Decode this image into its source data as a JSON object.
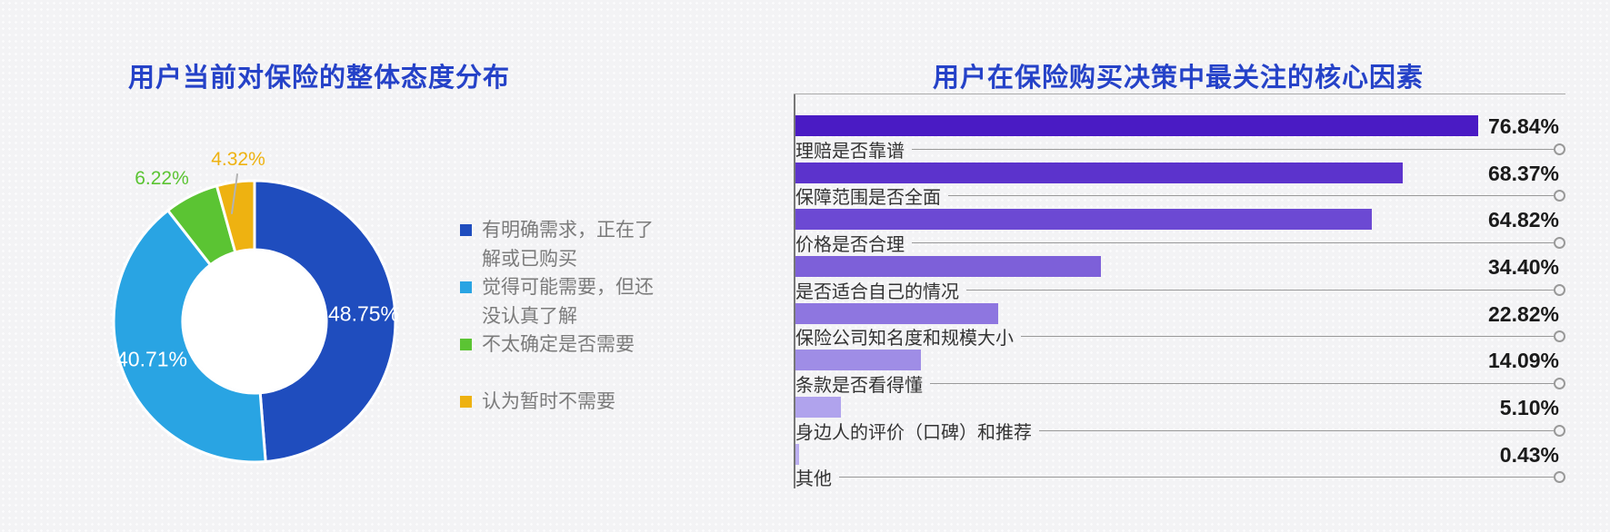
{
  "theme": {
    "title_color": "#2542c8",
    "background": "#f3f3f5",
    "value_label_color": "#1a1a1a",
    "category_label_color": "#333333"
  },
  "chart_data": [
    {
      "type": "pie",
      "variant": "donut",
      "title": "用户当前对保险的整体态度分布",
      "labels": [
        "有明确需求，正在了解或已购买",
        "觉得可能需要，但还没认真了解",
        "不太确定是否需要",
        "认为暂时不需要"
      ],
      "values": [
        48.75,
        40.71,
        6.22,
        4.32
      ],
      "value_labels": [
        "48.75%",
        "40.71%",
        "6.22%",
        "4.32%"
      ],
      "unit": "%",
      "colors": [
        "#1f4dbe",
        "#29a4e3",
        "#5bc433",
        "#eeb211"
      ],
      "legend_position": "right",
      "start_angle": "top",
      "direction": "clockwise"
    },
    {
      "type": "bar",
      "orientation": "horizontal",
      "title": "用户在保险购买决策中最关注的核心因素",
      "categories": [
        "理赔是否靠谱",
        "保障范围是否全面",
        "价格是否合理",
        "是否适合自己的情况",
        "保险公司知名度和规模大小",
        "条款是否看得懂",
        "身边人的评价（口碑）和推荐",
        "其他"
      ],
      "values": [
        76.84,
        68.37,
        64.82,
        34.4,
        22.82,
        14.09,
        5.1,
        0.43
      ],
      "value_labels": [
        "76.84%",
        "68.37%",
        "64.82%",
        "34.40%",
        "22.82%",
        "14.09%",
        "5.10%",
        "0.43%"
      ],
      "unit": "%",
      "sorted": "descending",
      "bar_colors": [
        "#4a1bc4",
        "#5c33cc",
        "#6c49d3",
        "#7d60d9",
        "#8e76e0",
        "#9f8de6",
        "#b0a3ed",
        "#bbafef"
      ],
      "grid": "off"
    }
  ]
}
